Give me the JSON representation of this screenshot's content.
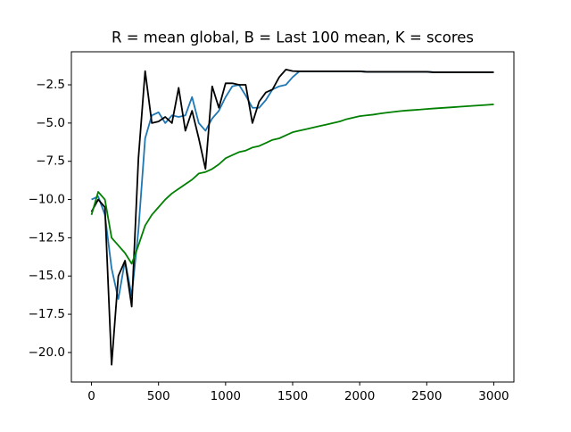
{
  "chart_data": {
    "type": "line",
    "title": "R = mean global, B = Last 100 mean, K = scores",
    "x": [
      0,
      50,
      100,
      150,
      200,
      250,
      300,
      350,
      400,
      450,
      500,
      550,
      600,
      650,
      700,
      750,
      800,
      850,
      900,
      950,
      1000,
      1050,
      1100,
      1150,
      1200,
      1250,
      1300,
      1350,
      1400,
      1450,
      1500,
      1550,
      1600,
      1650,
      1700,
      1750,
      1800,
      1850,
      1900,
      1950,
      2000,
      2050,
      2100,
      2150,
      2200,
      2250,
      2300,
      2350,
      2400,
      2450,
      2500,
      2550,
      2600,
      2650,
      2700,
      2750,
      2800,
      2850,
      2900,
      2950,
      3000
    ],
    "series": [
      {
        "color": "#1f77b4",
        "values": [
          -10,
          -9.8,
          -11,
          -14.5,
          -16.5,
          -14,
          -16.3,
          -12,
          -6,
          -4.5,
          -4.3,
          -5,
          -4.5,
          -4.6,
          -4.5,
          -3.3,
          -5,
          -5.5,
          -4.7,
          -4.2,
          -3.3,
          -2.6,
          -2.5,
          -3.2,
          -4,
          -4,
          -3.5,
          -2.8,
          -2.6,
          -2.5,
          -2,
          -1.62,
          -1.62,
          -1.62,
          -1.62,
          -1.62,
          -1.62,
          -1.62,
          -1.62,
          -1.62,
          -1.62,
          -1.65,
          -1.65,
          -1.65,
          -1.65,
          -1.65,
          -1.65,
          -1.65,
          -1.65,
          -1.65,
          -1.65,
          -1.68,
          -1.68,
          -1.68,
          -1.68,
          -1.68,
          -1.68,
          -1.68,
          -1.68,
          -1.68,
          -1.68
        ]
      },
      {
        "color": "#000000",
        "values": [
          -10.8,
          -10,
          -10.5,
          -20.8,
          -15,
          -14,
          -17,
          -7.3,
          -1.6,
          -5,
          -4.9,
          -4.6,
          -5,
          -2.7,
          -5.5,
          -4.2,
          -6,
          -8,
          -2.6,
          -4,
          -2.4,
          -2.4,
          -2.5,
          -2.5,
          -5,
          -3.6,
          -3,
          -2.8,
          -2,
          -1.5,
          -1.6,
          -1.62,
          -1.62,
          -1.62,
          -1.62,
          -1.62,
          -1.62,
          -1.62,
          -1.62,
          -1.62,
          -1.62,
          -1.65,
          -1.65,
          -1.65,
          -1.65,
          -1.65,
          -1.65,
          -1.65,
          -1.65,
          -1.65,
          -1.65,
          -1.68,
          -1.68,
          -1.68,
          -1.68,
          -1.68,
          -1.68,
          -1.68,
          -1.68,
          -1.68,
          -1.68
        ]
      },
      {
        "color": "#008000",
        "values": [
          -11,
          -9.5,
          -10,
          -12.5,
          -13,
          -13.5,
          -14.2,
          -13,
          -11.7,
          -11,
          -10.5,
          -10,
          -9.6,
          -9.3,
          -9,
          -8.7,
          -8.3,
          -8.2,
          -8,
          -7.7,
          -7.3,
          -7.1,
          -6.9,
          -6.8,
          -6.6,
          -6.5,
          -6.3,
          -6.1,
          -6,
          -5.8,
          -5.6,
          -5.5,
          -5.4,
          -5.3,
          -5.2,
          -5.1,
          -5,
          -4.9,
          -4.75,
          -4.65,
          -4.55,
          -4.5,
          -4.45,
          -4.38,
          -4.32,
          -4.27,
          -4.22,
          -4.18,
          -4.15,
          -4.12,
          -4.08,
          -4.05,
          -4.02,
          -3.99,
          -3.96,
          -3.93,
          -3.9,
          -3.87,
          -3.84,
          -3.81,
          -3.78
        ]
      }
    ],
    "xlim": [
      -150,
      3150
    ],
    "ylim": [
      -21.93,
      -0.34
    ],
    "xticks": [
      0,
      500,
      1000,
      1500,
      2000,
      2500,
      3000
    ],
    "yticks": [
      {
        "value": -20,
        "label": "−20.0"
      },
      {
        "value": -17.5,
        "label": "−17.5"
      },
      {
        "value": -15,
        "label": "−15.0"
      },
      {
        "value": -12.5,
        "label": "−12.5"
      },
      {
        "value": -10,
        "label": "−10.0"
      },
      {
        "value": -7.5,
        "label": "−7.5"
      },
      {
        "value": -5,
        "label": "−5.0"
      },
      {
        "value": -2.5,
        "label": "−2.5"
      }
    ],
    "grid": false
  }
}
